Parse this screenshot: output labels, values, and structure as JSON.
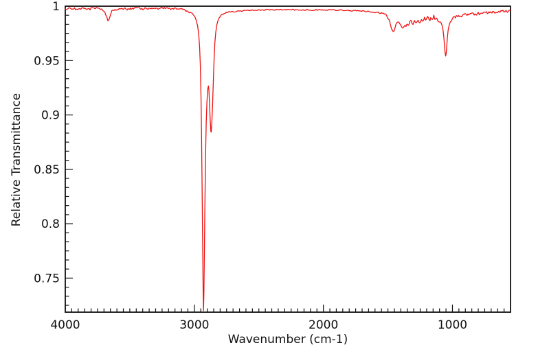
{
  "chart_data": {
    "type": "line",
    "title": "",
    "xlabel": "Wavenumber (cm-1)",
    "ylabel": "Relative Transmittance",
    "xlim": [
      4000,
      550
    ],
    "x_axis_reversed": true,
    "ylim": [
      0.7187,
      1.0
    ],
    "x_ticks_major": [
      4000,
      3000,
      2000,
      1000
    ],
    "x_tick_labels": [
      "4000",
      "3000",
      "2000",
      "1000"
    ],
    "x_minor_step": 50,
    "y_ticks_major": [
      1.0,
      0.95,
      0.9,
      0.85,
      0.8,
      0.75
    ],
    "y_tick_labels": [
      "1",
      "0.95",
      "0.9",
      "0.85",
      "0.8",
      "0.75"
    ],
    "y_minor_divisions": 6,
    "grid": false,
    "legend": false,
    "line_color": "#ee1111",
    "axis_color": "#111111",
    "peaks": [
      {
        "wavenumber": 3670,
        "transmittance": 0.9865
      },
      {
        "wavenumber": 2929,
        "transmittance": 0.72
      },
      {
        "wavenumber": 2891,
        "transmittance": 0.927
      },
      {
        "wavenumber": 2869,
        "transmittance": 0.884
      },
      {
        "wavenumber": 1460,
        "transmittance": 0.9765
      },
      {
        "wavenumber": 1395,
        "transmittance": 0.9805
      },
      {
        "wavenumber": 1053,
        "transmittance": 0.9545
      }
    ],
    "noise_regions": [
      [
        4000,
        3020,
        0.0012
      ],
      [
        3020,
        2800,
        0.0004
      ],
      [
        2800,
        1560,
        0.0006
      ],
      [
        1560,
        1345,
        0.0012
      ],
      [
        1345,
        1090,
        0.0028
      ],
      [
        1090,
        1000,
        0.0012
      ],
      [
        1000,
        550,
        0.0015
      ]
    ],
    "points": [
      [
        4000,
        0.9975
      ],
      [
        3960,
        0.998
      ],
      [
        3920,
        0.9975
      ],
      [
        3880,
        0.998
      ],
      [
        3840,
        0.9975
      ],
      [
        3800,
        0.9975
      ],
      [
        3760,
        0.998
      ],
      [
        3730,
        0.9975
      ],
      [
        3705,
        0.996
      ],
      [
        3690,
        0.9935
      ],
      [
        3680,
        0.99
      ],
      [
        3670,
        0.9865
      ],
      [
        3660,
        0.989
      ],
      [
        3650,
        0.9925
      ],
      [
        3640,
        0.995
      ],
      [
        3625,
        0.9965
      ],
      [
        3600,
        0.997
      ],
      [
        3550,
        0.9975
      ],
      [
        3500,
        0.9975
      ],
      [
        3450,
        0.998
      ],
      [
        3400,
        0.9975
      ],
      [
        3350,
        0.998
      ],
      [
        3300,
        0.9975
      ],
      [
        3250,
        0.998
      ],
      [
        3200,
        0.9975
      ],
      [
        3150,
        0.9975
      ],
      [
        3100,
        0.997
      ],
      [
        3060,
        0.996
      ],
      [
        3030,
        0.9945
      ],
      [
        3010,
        0.9925
      ],
      [
        2995,
        0.99
      ],
      [
        2985,
        0.987
      ],
      [
        2975,
        0.982
      ],
      [
        2966,
        0.974
      ],
      [
        2959,
        0.962
      ],
      [
        2953,
        0.944
      ],
      [
        2948,
        0.915
      ],
      [
        2944,
        0.88
      ],
      [
        2940,
        0.835
      ],
      [
        2936,
        0.785
      ],
      [
        2932,
        0.74
      ],
      [
        2929,
        0.72
      ],
      [
        2926,
        0.735
      ],
      [
        2922,
        0.775
      ],
      [
        2918,
        0.818
      ],
      [
        2913,
        0.862
      ],
      [
        2908,
        0.893
      ],
      [
        2902,
        0.913
      ],
      [
        2896,
        0.924
      ],
      [
        2891,
        0.927
      ],
      [
        2887,
        0.923
      ],
      [
        2882,
        0.91
      ],
      [
        2877,
        0.895
      ],
      [
        2872,
        0.8845
      ],
      [
        2869,
        0.884
      ],
      [
        2865,
        0.891
      ],
      [
        2859,
        0.908
      ],
      [
        2853,
        0.93
      ],
      [
        2847,
        0.951
      ],
      [
        2841,
        0.966
      ],
      [
        2834,
        0.976
      ],
      [
        2826,
        0.9825
      ],
      [
        2817,
        0.9865
      ],
      [
        2806,
        0.9895
      ],
      [
        2794,
        0.9915
      ],
      [
        2780,
        0.9925
      ],
      [
        2760,
        0.9935
      ],
      [
        2730,
        0.9945
      ],
      [
        2700,
        0.995
      ],
      [
        2650,
        0.9955
      ],
      [
        2600,
        0.996
      ],
      [
        2550,
        0.9962
      ],
      [
        2500,
        0.9965
      ],
      [
        2440,
        0.9966
      ],
      [
        2380,
        0.9967
      ],
      [
        2320,
        0.9968
      ],
      [
        2260,
        0.9968
      ],
      [
        2200,
        0.9968
      ],
      [
        2140,
        0.9967
      ],
      [
        2080,
        0.9966
      ],
      [
        2020,
        0.9966
      ],
      [
        1960,
        0.9965
      ],
      [
        1900,
        0.9963
      ],
      [
        1840,
        0.9962
      ],
      [
        1780,
        0.996
      ],
      [
        1720,
        0.9957
      ],
      [
        1660,
        0.9952
      ],
      [
        1620,
        0.9948
      ],
      [
        1580,
        0.9942
      ],
      [
        1550,
        0.9935
      ],
      [
        1525,
        0.9925
      ],
      [
        1505,
        0.9905
      ],
      [
        1490,
        0.987
      ],
      [
        1478,
        0.9825
      ],
      [
        1468,
        0.9785
      ],
      [
        1460,
        0.9765
      ],
      [
        1452,
        0.9775
      ],
      [
        1444,
        0.98
      ],
      [
        1436,
        0.9835
      ],
      [
        1428,
        0.986
      ],
      [
        1420,
        0.9865
      ],
      [
        1413,
        0.9857
      ],
      [
        1406,
        0.984
      ],
      [
        1399,
        0.9817
      ],
      [
        1393,
        0.9805
      ],
      [
        1387,
        0.9807
      ],
      [
        1380,
        0.9812
      ],
      [
        1372,
        0.9818
      ],
      [
        1362,
        0.9822
      ],
      [
        1350,
        0.983
      ],
      [
        1335,
        0.984
      ],
      [
        1320,
        0.9845
      ],
      [
        1305,
        0.985
      ],
      [
        1290,
        0.9855
      ],
      [
        1275,
        0.986
      ],
      [
        1260,
        0.9862
      ],
      [
        1245,
        0.9868
      ],
      [
        1230,
        0.9872
      ],
      [
        1215,
        0.988
      ],
      [
        1200,
        0.9878
      ],
      [
        1185,
        0.9885
      ],
      [
        1170,
        0.9882
      ],
      [
        1155,
        0.989
      ],
      [
        1140,
        0.9892
      ],
      [
        1125,
        0.9885
      ],
      [
        1112,
        0.9875
      ],
      [
        1102,
        0.9868
      ],
      [
        1094,
        0.9858
      ],
      [
        1086,
        0.9838
      ],
      [
        1079,
        0.9815
      ],
      [
        1073,
        0.978
      ],
      [
        1067,
        0.972
      ],
      [
        1062,
        0.965
      ],
      [
        1057,
        0.9575
      ],
      [
        1053,
        0.9545
      ],
      [
        1049,
        0.957
      ],
      [
        1044,
        0.9635
      ],
      [
        1039,
        0.971
      ],
      [
        1033,
        0.9775
      ],
      [
        1026,
        0.982
      ],
      [
        1018,
        0.9852
      ],
      [
        1008,
        0.9875
      ],
      [
        998,
        0.989
      ],
      [
        985,
        0.9898
      ],
      [
        970,
        0.9905
      ],
      [
        950,
        0.991
      ],
      [
        925,
        0.9915
      ],
      [
        900,
        0.992
      ],
      [
        875,
        0.9922
      ],
      [
        850,
        0.9925
      ],
      [
        825,
        0.9928
      ],
      [
        800,
        0.993
      ],
      [
        775,
        0.9933
      ],
      [
        750,
        0.9937
      ],
      [
        725,
        0.994
      ],
      [
        700,
        0.9944
      ],
      [
        675,
        0.9947
      ],
      [
        650,
        0.995
      ],
      [
        625,
        0.9952
      ],
      [
        600,
        0.9955
      ],
      [
        575,
        0.9957
      ],
      [
        550,
        0.996
      ]
    ]
  }
}
